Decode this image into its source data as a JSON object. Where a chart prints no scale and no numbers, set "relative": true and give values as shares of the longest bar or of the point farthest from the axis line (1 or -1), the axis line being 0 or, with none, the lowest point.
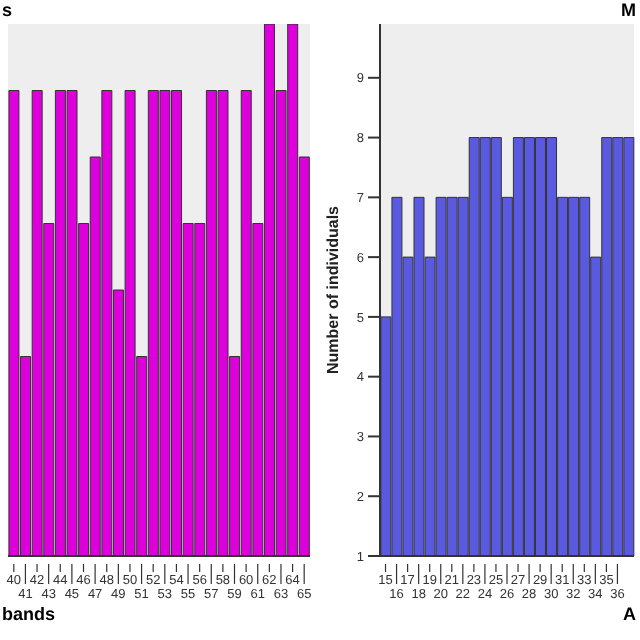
{
  "chart_data": [
    {
      "type": "bar",
      "title": "s",
      "xlabel": "bands",
      "relative": true,
      "color": "#dd00dd",
      "categories": [
        "40",
        "41",
        "42",
        "43",
        "44",
        "45",
        "46",
        "47",
        "48",
        "49",
        "50",
        "51",
        "52",
        "53",
        "54",
        "55",
        "56",
        "57",
        "58",
        "59",
        "60",
        "61",
        "62",
        "63",
        "64",
        "65"
      ],
      "values": [
        0.875,
        0.375,
        0.875,
        0.625,
        0.875,
        0.875,
        0.625,
        0.75,
        0.875,
        0.5,
        0.875,
        0.375,
        0.875,
        0.875,
        0.875,
        0.625,
        0.625,
        0.875,
        0.875,
        0.375,
        0.875,
        0.625,
        1,
        0.875,
        1,
        0.75
      ]
    },
    {
      "type": "bar",
      "title": "M",
      "xlabel": "A",
      "ylabel": "Number of individuals",
      "color": "#5a5ae0",
      "ylim": [
        1,
        9.9
      ],
      "yticks": [
        1,
        2,
        3,
        4,
        5,
        6,
        7,
        8,
        9
      ],
      "categories": [
        "15",
        "16",
        "17",
        "18",
        "19",
        "20",
        "21",
        "22",
        "23",
        "24",
        "25",
        "26",
        "27",
        "28",
        "29",
        "30",
        "31",
        "32",
        "33",
        "34",
        "35",
        "36",
        null
      ],
      "values": [
        5,
        7,
        6,
        7,
        6,
        7,
        7,
        7,
        8,
        8,
        8,
        7,
        8,
        8,
        8,
        8,
        7,
        7,
        7,
        6,
        8,
        8,
        8
      ]
    }
  ]
}
